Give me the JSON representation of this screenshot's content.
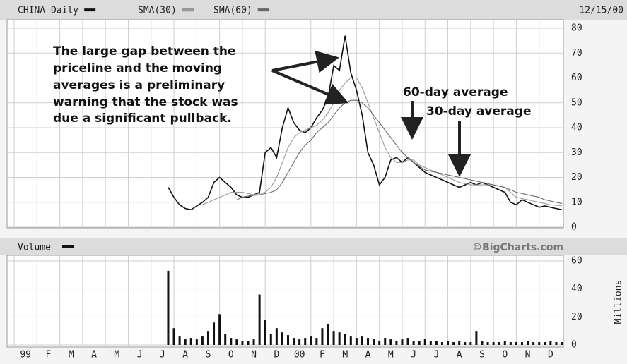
{
  "chart_data": [
    {
      "type": "line",
      "title": "CHINA Daily",
      "subtitle": "12/15/00",
      "x": [
        6.75,
        7,
        7.25,
        7.5,
        7.75,
        8,
        8.25,
        8.5,
        8.75,
        9,
        9.25,
        9.5,
        9.75,
        10,
        10.25,
        10.5,
        10.75,
        11,
        11.25,
        11.5,
        11.75,
        12,
        12.25,
        12.5,
        12.75,
        13,
        13.25,
        13.5,
        13.75,
        14,
        14.25,
        14.5,
        14.75,
        15,
        15.25,
        15.5,
        15.75,
        16,
        16.25,
        16.5,
        16.75,
        17,
        17.25,
        17.5,
        17.75,
        18,
        18.25,
        18.5,
        18.75,
        19,
        19.25,
        19.5,
        19.75,
        20,
        20.25,
        20.5,
        20.75,
        21,
        21.25,
        21.5,
        21.75,
        22,
        22.25,
        22.5,
        22.75,
        23,
        23.25,
        23.5,
        23.75,
        24
      ],
      "series": [
        {
          "name": "CHINA Daily",
          "color": "#111111",
          "values": [
            16,
            12,
            9,
            7.5,
            7,
            8.5,
            10,
            12,
            18,
            20,
            18,
            16,
            13,
            12,
            12,
            13,
            14,
            30,
            32,
            28,
            40,
            48,
            42,
            39,
            38,
            40,
            44,
            47,
            52,
            65,
            63,
            77,
            62,
            55,
            45,
            30,
            25,
            17,
            20,
            27,
            28,
            26,
            28,
            26,
            24,
            22,
            21,
            20,
            19,
            18,
            17,
            16,
            17,
            18,
            17,
            18,
            17,
            16,
            15,
            14,
            10,
            9,
            11,
            10,
            9,
            8,
            8.5,
            8,
            7.5,
            7
          ]
        },
        {
          "name": "SMA(30)",
          "color": "#9a9a9a",
          "values": [
            null,
            null,
            null,
            null,
            null,
            null,
            9,
            10,
            11,
            12,
            13,
            14,
            14,
            14,
            13.5,
            13,
            13.5,
            14,
            16,
            20,
            26,
            32,
            36,
            38,
            39,
            40,
            41,
            43,
            46,
            50,
            55,
            58,
            60,
            60,
            56,
            50,
            44,
            38,
            32,
            28,
            26,
            26,
            27,
            27,
            25,
            24,
            23,
            22,
            21,
            20,
            19,
            18,
            17.5,
            17,
            17,
            17,
            17,
            17,
            16.5,
            16,
            14,
            12,
            11.5,
            11,
            10.5,
            10,
            9.5,
            9,
            8.8,
            8.5
          ]
        },
        {
          "name": "SMA(60)",
          "color": "#6a6a6a",
          "values": [
            null,
            null,
            null,
            null,
            null,
            null,
            null,
            null,
            null,
            null,
            null,
            null,
            11,
            12,
            12.5,
            12.8,
            13,
            13.5,
            14,
            15,
            18,
            22,
            26,
            30,
            33,
            35,
            38,
            40,
            42,
            45,
            48,
            50,
            51,
            51,
            50,
            48,
            45,
            42,
            39,
            36,
            33,
            30,
            28,
            26,
            24.5,
            23,
            22.5,
            22,
            21.5,
            21,
            20.5,
            20,
            19.5,
            19,
            18.5,
            18,
            17.5,
            17,
            16.5,
            16,
            15,
            14,
            13.5,
            13,
            12.5,
            12,
            11,
            10.5,
            10,
            9.5
          ]
        }
      ],
      "xlim": [
        0,
        24
      ],
      "ylim": [
        0,
        80
      ],
      "yticks": [
        0,
        10,
        20,
        30,
        40,
        50,
        60,
        70,
        80
      ],
      "grid": true,
      "annotations": [
        {
          "lines": [
            "The large gap between the",
            "priceline and the moving",
            "averages is a preliminary",
            "warning that the stock was",
            "due a significant pullback."
          ]
        },
        {
          "lines": [
            "60-day average"
          ]
        },
        {
          "lines": [
            "30-day average"
          ]
        }
      ]
    },
    {
      "type": "bar",
      "title": "Volume",
      "color": "#111111",
      "credit": "©BigCharts.com",
      "ylabel": "Millions",
      "x": [
        6.75,
        7,
        7.25,
        7.5,
        7.75,
        8,
        8.25,
        8.5,
        8.75,
        9,
        9.25,
        9.5,
        9.75,
        10,
        10.25,
        10.5,
        10.75,
        11,
        11.25,
        11.5,
        11.75,
        12,
        12.25,
        12.5,
        12.75,
        13,
        13.25,
        13.5,
        13.75,
        14,
        14.25,
        14.5,
        14.75,
        15,
        15.25,
        15.5,
        15.75,
        16,
        16.25,
        16.5,
        16.75,
        17,
        17.25,
        17.5,
        17.75,
        18,
        18.25,
        18.5,
        18.75,
        19,
        19.25,
        19.5,
        19.75,
        20,
        20.25,
        20.5,
        20.75,
        21,
        21.25,
        21.5,
        21.75,
        22,
        22.25,
        22.5,
        22.75,
        23,
        23.25,
        23.5,
        23.75,
        24
      ],
      "values": [
        53,
        12,
        6,
        4,
        5,
        4,
        6,
        10,
        16,
        22,
        8,
        5,
        4,
        3,
        3,
        4,
        36,
        18,
        8,
        12,
        9,
        7,
        5,
        4,
        5,
        6,
        5,
        12,
        15,
        10,
        9,
        8,
        6,
        5,
        6,
        5,
        4,
        3,
        5,
        4,
        3,
        4,
        5,
        3,
        3,
        4,
        3,
        3,
        2,
        3,
        2,
        3,
        2,
        2,
        10,
        3,
        2,
        2,
        2,
        3,
        2,
        2,
        2,
        3,
        2,
        2,
        2,
        3,
        2,
        2
      ],
      "xlim": [
        0,
        24
      ],
      "ylim": [
        0,
        60
      ],
      "yticks": [
        0,
        20,
        40,
        60
      ],
      "grid": true,
      "xticks": [
        {
          "value": 0,
          "label": "99"
        },
        {
          "value": 1,
          "label": "F"
        },
        {
          "value": 2,
          "label": "M"
        },
        {
          "value": 3,
          "label": "A"
        },
        {
          "value": 4,
          "label": "M"
        },
        {
          "value": 5,
          "label": "J"
        },
        {
          "value": 6,
          "label": "J"
        },
        {
          "value": 7,
          "label": "A"
        },
        {
          "value": 8,
          "label": "S"
        },
        {
          "value": 9,
          "label": "O"
        },
        {
          "value": 10,
          "label": "N"
        },
        {
          "value": 11,
          "label": "D"
        },
        {
          "value": 12,
          "label": "00"
        },
        {
          "value": 13,
          "label": "F"
        },
        {
          "value": 14,
          "label": "M"
        },
        {
          "value": 15,
          "label": "A"
        },
        {
          "value": 16,
          "label": "M"
        },
        {
          "value": 17,
          "label": "J"
        },
        {
          "value": 18,
          "label": "J"
        },
        {
          "value": 19,
          "label": "A"
        },
        {
          "value": 20,
          "label": "S"
        },
        {
          "value": 21,
          "label": "O"
        },
        {
          "value": 22,
          "label": "N"
        },
        {
          "value": 23,
          "label": "D"
        }
      ]
    }
  ]
}
